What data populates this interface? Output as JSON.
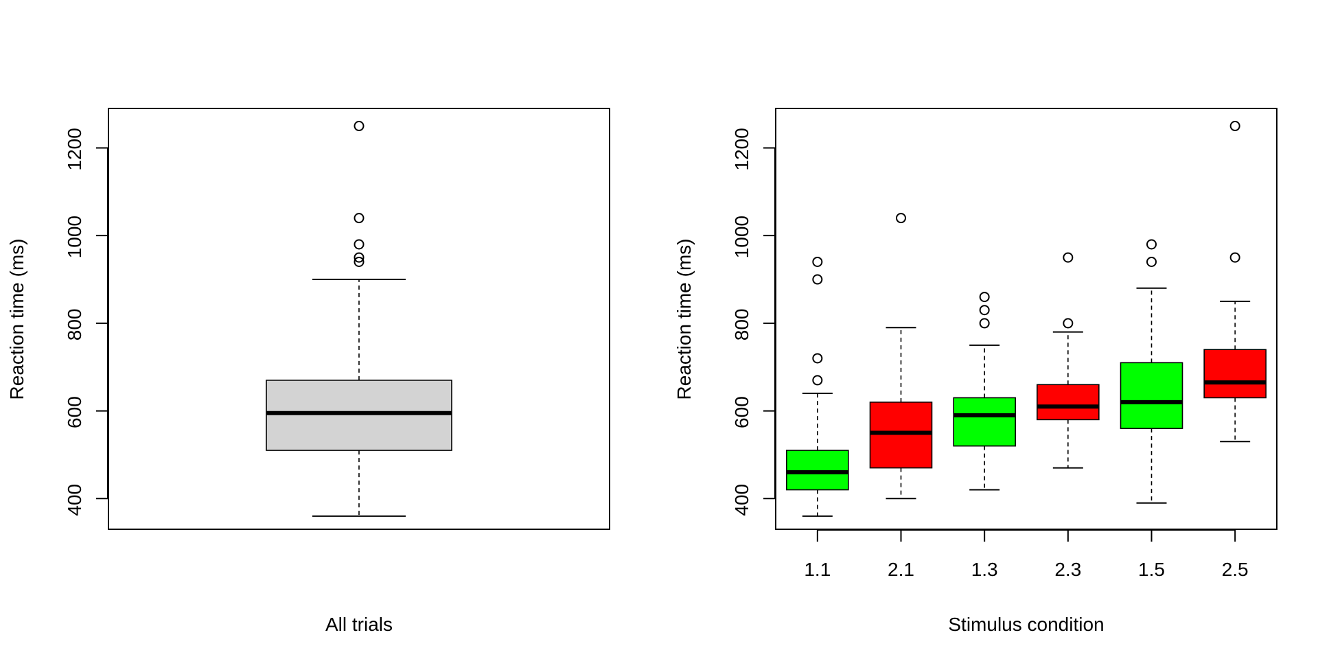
{
  "chart_data": [
    {
      "type": "boxplot",
      "xlabel": "All trials",
      "ylabel": "Reaction time (ms)",
      "ylim": [
        330,
        1290
      ],
      "yticks": [
        400,
        600,
        800,
        1000,
        1200
      ],
      "yticklabels": [
        "400",
        "600",
        "800",
        "1000",
        "1200"
      ],
      "boxes": [
        {
          "label": "",
          "fill": "#d3d3d3",
          "whisker_low": 360,
          "q1": 510,
          "median": 595,
          "q3": 670,
          "whisker_high": 900,
          "outliers": [
            940,
            950,
            980,
            1040,
            1250
          ]
        }
      ]
    },
    {
      "type": "boxplot",
      "xlabel": "Stimulus condition",
      "ylabel": "Reaction time (ms)",
      "ylim": [
        330,
        1290
      ],
      "yticks": [
        400,
        600,
        800,
        1000,
        1200
      ],
      "yticklabels": [
        "400",
        "600",
        "800",
        "1000",
        "1200"
      ],
      "boxes": [
        {
          "label": "1.1",
          "fill": "#00ff00",
          "whisker_low": 360,
          "q1": 420,
          "median": 460,
          "q3": 510,
          "whisker_high": 640,
          "outliers": [
            670,
            720,
            900,
            940
          ]
        },
        {
          "label": "2.1",
          "fill": "#ff0000",
          "whisker_low": 400,
          "q1": 470,
          "median": 550,
          "q3": 620,
          "whisker_high": 790,
          "outliers": [
            1040
          ]
        },
        {
          "label": "1.3",
          "fill": "#00ff00",
          "whisker_low": 420,
          "q1": 520,
          "median": 590,
          "q3": 630,
          "whisker_high": 750,
          "outliers": [
            800,
            830,
            860
          ]
        },
        {
          "label": "2.3",
          "fill": "#ff0000",
          "whisker_low": 470,
          "q1": 580,
          "median": 610,
          "q3": 660,
          "whisker_high": 780,
          "outliers": [
            800,
            950
          ]
        },
        {
          "label": "1.5",
          "fill": "#00ff00",
          "whisker_low": 390,
          "q1": 560,
          "median": 620,
          "q3": 710,
          "whisker_high": 880,
          "outliers": [
            940,
            980
          ]
        },
        {
          "label": "2.5",
          "fill": "#ff0000",
          "whisker_low": 530,
          "q1": 630,
          "median": 665,
          "q3": 740,
          "whisker_high": 850,
          "outliers": [
            950,
            1250
          ]
        }
      ]
    }
  ]
}
